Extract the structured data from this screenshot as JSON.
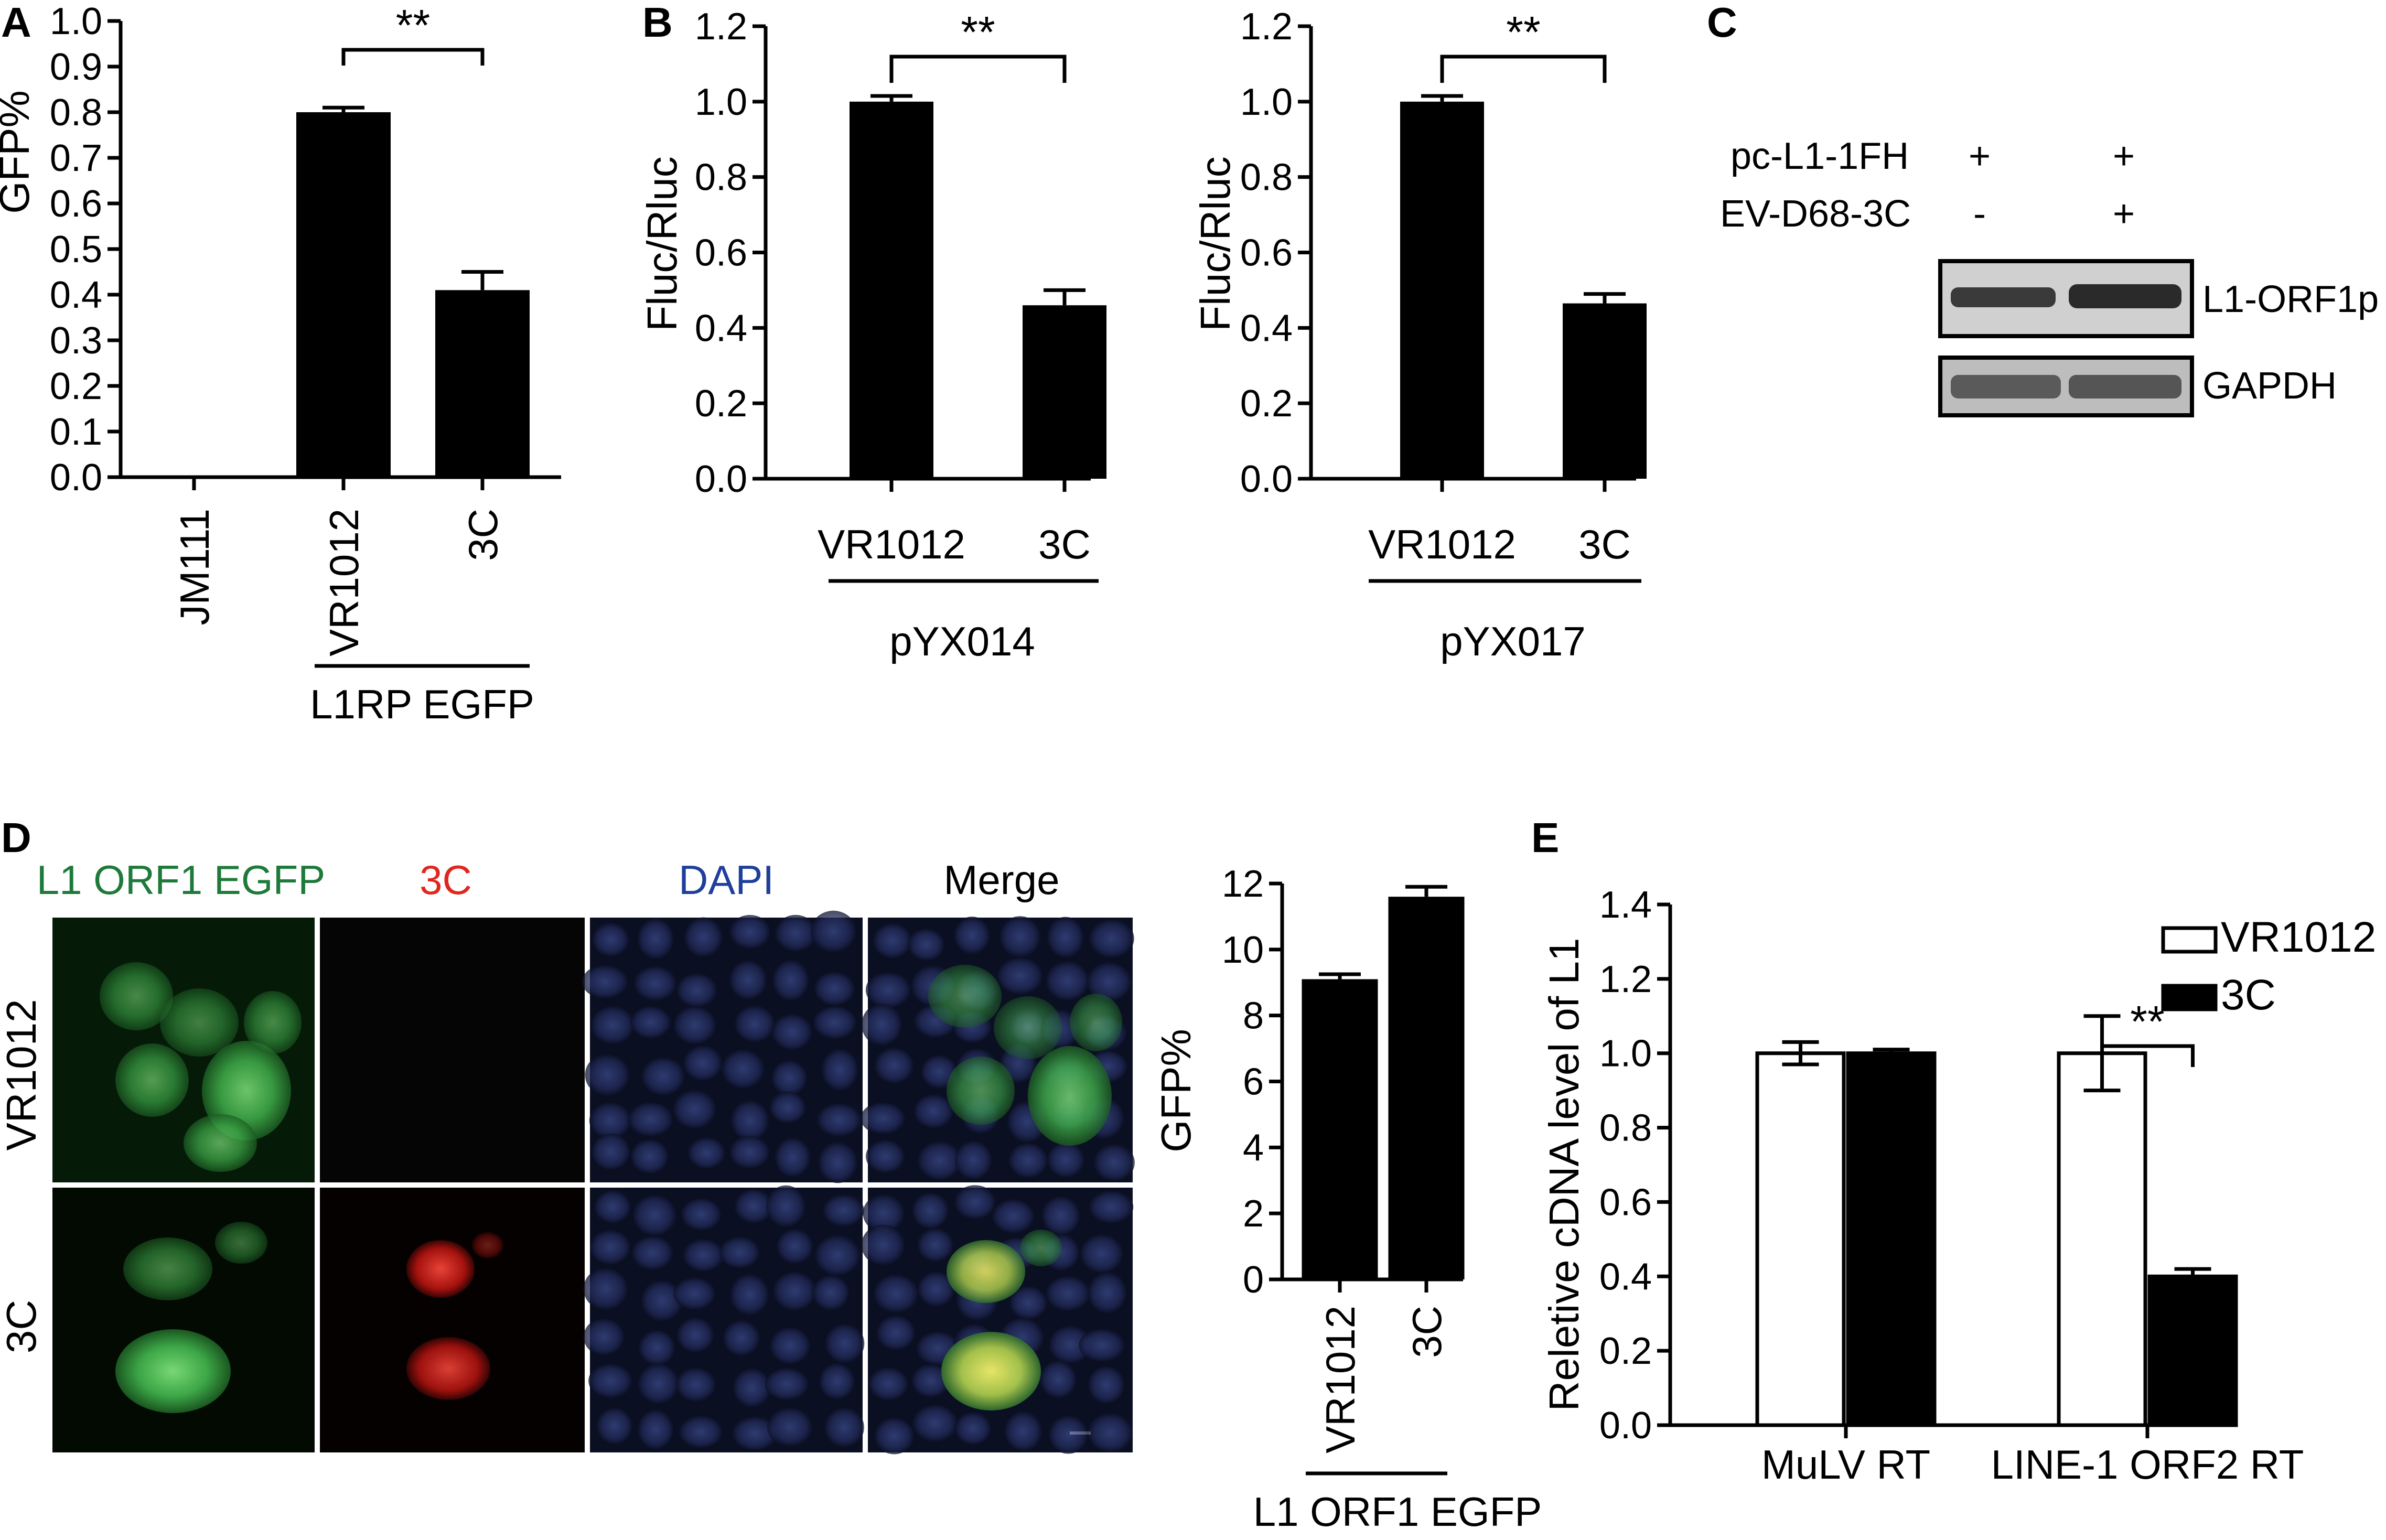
{
  "panels": {
    "A": "A",
    "B": "B",
    "C": "C",
    "D": "D",
    "E": "E"
  },
  "chart_data": [
    {
      "id": "A",
      "type": "bar",
      "categories": [
        "JM111",
        "VR1012",
        "3C"
      ],
      "values": [
        0.0,
        0.8,
        0.41
      ],
      "errors": [
        0.0,
        0.01,
        0.04
      ],
      "ylabel": "GFP%",
      "ylim": [
        0,
        1.0
      ],
      "yticks": [
        "0.0",
        "0.1",
        "0.2",
        "0.3",
        "0.4",
        "0.5",
        "0.6",
        "0.7",
        "0.8",
        "0.9",
        "1.0"
      ],
      "group_label": "L1RP EGFP",
      "significance": "**"
    },
    {
      "id": "B1",
      "type": "bar",
      "categories": [
        "VR1012",
        "3C"
      ],
      "values": [
        1.0,
        0.46
      ],
      "errors": [
        0.015,
        0.04
      ],
      "ylabel": "Fluc/Rluc",
      "ylim": [
        0,
        1.2
      ],
      "yticks": [
        "0.0",
        "0.2",
        "0.4",
        "0.6",
        "0.8",
        "1.0",
        "1.2"
      ],
      "group_label": "pYX014",
      "significance": "**"
    },
    {
      "id": "B2",
      "type": "bar",
      "categories": [
        "VR1012",
        "3C"
      ],
      "values": [
        1.0,
        0.465
      ],
      "errors": [
        0.015,
        0.025
      ],
      "ylabel": "Fluc/Rluc",
      "ylim": [
        0,
        1.2
      ],
      "yticks": [
        "0.0",
        "0.2",
        "0.4",
        "0.6",
        "0.8",
        "1.0",
        "1.2"
      ],
      "group_label": "pYX017",
      "significance": "**"
    },
    {
      "id": "D",
      "type": "bar",
      "categories": [
        "VR1012",
        "3C"
      ],
      "values": [
        9.1,
        11.6
      ],
      "errors": [
        0.15,
        0.3
      ],
      "ylabel": "GFP%",
      "ylim": [
        0,
        12
      ],
      "yticks": [
        "0",
        "2",
        "4",
        "6",
        "8",
        "10",
        "12"
      ],
      "group_label": "L1 ORF1 EGFP"
    },
    {
      "id": "E",
      "type": "bar",
      "categories": [
        "MuLV RT",
        "LINE-1 ORF2 RT"
      ],
      "series": [
        {
          "name": "VR1012",
          "values": [
            1.0,
            1.0
          ],
          "errors": [
            0.03,
            0.1
          ],
          "color": "#ffffff"
        },
        {
          "name": "3C",
          "values": [
            1.0,
            0.4
          ],
          "errors": [
            0.01,
            0.02
          ],
          "color": "#000000"
        }
      ],
      "ylabel": "Reletive cDNA level of L1",
      "ylim": [
        0,
        1.4
      ],
      "yticks": [
        "0.0",
        "0.2",
        "0.4",
        "0.6",
        "0.8",
        "1.0",
        "1.2",
        "1.4"
      ],
      "significance": "**"
    }
  ],
  "blot": {
    "conditions": [
      {
        "label": "pc-L1-1FH",
        "marks": [
          "+",
          "+"
        ]
      },
      {
        "label": "EV-D68-3C",
        "marks": [
          "-",
          "+"
        ]
      }
    ],
    "bands": [
      "L1-ORF1p",
      "GAPDH"
    ]
  },
  "microscopy": {
    "columns": [
      {
        "label": "L1 ORF1 EGFP",
        "color": "#1e7a3a"
      },
      {
        "label": "3C",
        "color": "#e0261d"
      },
      {
        "label": "DAPI",
        "color": "#1f3f9a"
      },
      {
        "label": "Merge",
        "color": "#000000"
      }
    ],
    "rows": [
      "VR1012",
      "3C"
    ]
  }
}
